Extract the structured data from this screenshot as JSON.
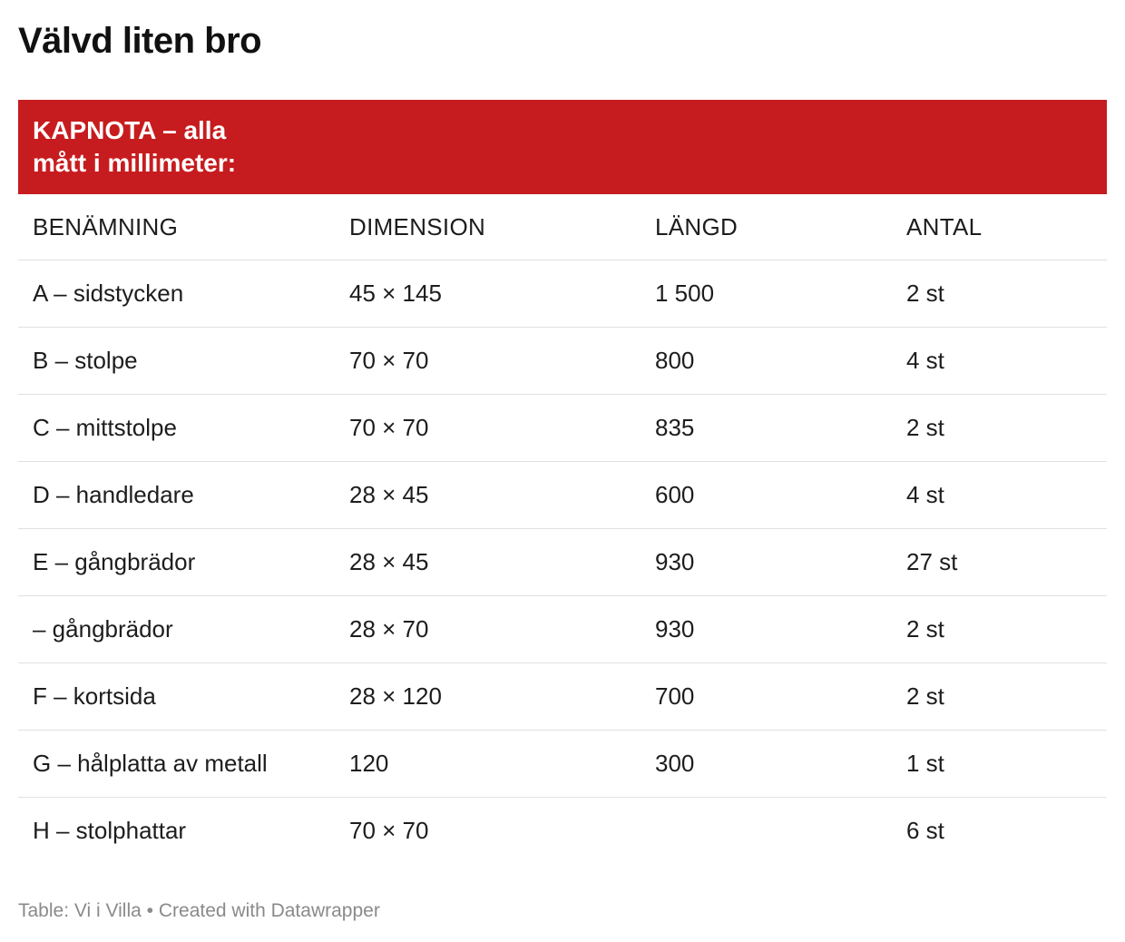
{
  "title": "Välvd liten bro",
  "banner": {
    "line1": "KAPNOTA – alla",
    "line2": "mått i millimeter:",
    "color": "#c71c1f"
  },
  "table": {
    "headers": [
      "BENÄMNING",
      "DIMENSION",
      "LÄNGD",
      "ANTAL"
    ],
    "rows": [
      [
        "A – sidstycken",
        "45 × 145",
        "1 500",
        "2 st"
      ],
      [
        "B – stolpe",
        "70 × 70",
        "800",
        "4 st"
      ],
      [
        "C – mittstolpe",
        "70 × 70",
        "835",
        "2 st"
      ],
      [
        "D – handledare",
        "28 × 45",
        "600",
        "4 st"
      ],
      [
        "E – gångbrädor",
        "28 × 45",
        "930",
        "27 st"
      ],
      [
        "– gångbrädor",
        "28 × 70",
        "930",
        "2 st"
      ],
      [
        "F – kortsida",
        "28 × 120",
        "700",
        "2 st"
      ],
      [
        "G – hålplatta av metall",
        "120",
        "300",
        "1 st"
      ],
      [
        "H – stolphattar",
        "70 × 70",
        "",
        "6 st"
      ]
    ]
  },
  "footer": {
    "source": "Table: Vi i Villa",
    "separator": "•",
    "credit": "Created with Datawrapper"
  }
}
